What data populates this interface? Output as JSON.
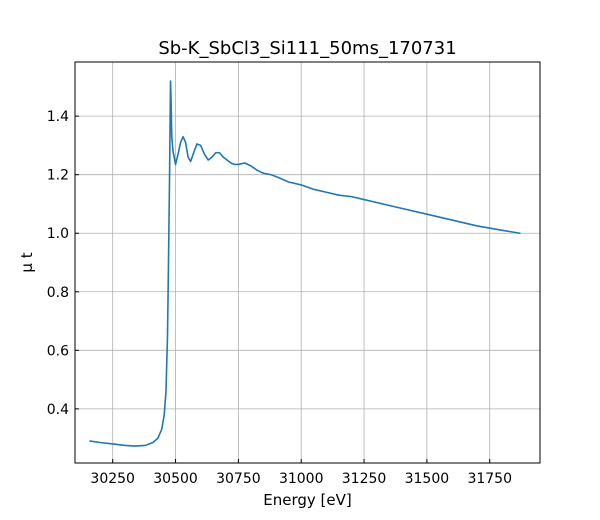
{
  "chart_data": {
    "type": "line",
    "title": "Sb-K_SbCl3_Si111_50ms_170731",
    "xlabel": "Energy [eV]",
    "ylabel": "μ t",
    "xlim": [
      30100,
      31950
    ],
    "ylim": [
      0.215,
      1.585
    ],
    "xticks": [
      30250,
      30500,
      30750,
      31000,
      31250,
      31500,
      31750
    ],
    "yticks": [
      0.4,
      0.6,
      0.8,
      1.0,
      1.2,
      1.4
    ],
    "grid": true,
    "series": [
      {
        "color": "#1f77b4",
        "x": [
          30160,
          30200,
          30250,
          30300,
          30340,
          30380,
          30410,
          30430,
          30445,
          30455,
          30462,
          30468,
          30472,
          30476,
          30478,
          30480,
          30482,
          30485,
          30490,
          30500,
          30510,
          30520,
          30530,
          30540,
          30550,
          30560,
          30570,
          30585,
          30600,
          30615,
          30630,
          30645,
          30660,
          30675,
          30690,
          30705,
          30720,
          30735,
          30750,
          30775,
          30800,
          30825,
          30850,
          30880,
          30910,
          30950,
          31000,
          31050,
          31100,
          31150,
          31200,
          31250,
          31300,
          31400,
          31500,
          31600,
          31700,
          31800,
          31870
        ],
        "y": [
          0.29,
          0.285,
          0.28,
          0.275,
          0.273,
          0.275,
          0.285,
          0.3,
          0.33,
          0.38,
          0.46,
          0.65,
          0.9,
          1.18,
          1.35,
          1.52,
          1.46,
          1.33,
          1.28,
          1.235,
          1.27,
          1.31,
          1.33,
          1.31,
          1.26,
          1.245,
          1.27,
          1.305,
          1.3,
          1.27,
          1.25,
          1.26,
          1.275,
          1.275,
          1.26,
          1.25,
          1.24,
          1.235,
          1.235,
          1.24,
          1.23,
          1.215,
          1.205,
          1.2,
          1.19,
          1.175,
          1.165,
          1.15,
          1.14,
          1.13,
          1.125,
          1.115,
          1.105,
          1.085,
          1.065,
          1.045,
          1.025,
          1.01,
          1.0
        ]
      }
    ]
  }
}
